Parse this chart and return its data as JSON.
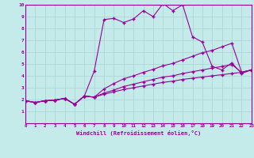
{
  "xlabel": "Windchill (Refroidissement éolien,°C)",
  "xlim": [
    0,
    23
  ],
  "ylim": [
    0,
    10
  ],
  "xticks": [
    0,
    1,
    2,
    3,
    4,
    5,
    6,
    7,
    8,
    9,
    10,
    11,
    12,
    13,
    14,
    15,
    16,
    17,
    18,
    19,
    20,
    21,
    22,
    23
  ],
  "yticks": [
    1,
    2,
    3,
    4,
    5,
    6,
    7,
    8,
    9,
    10
  ],
  "background_color": "#c5eaea",
  "line_color": "#990099",
  "grid_color": "#a8d4d4",
  "lines": [
    {
      "x": [
        0,
        1,
        2,
        3,
        4,
        5,
        6,
        7,
        8,
        9,
        10,
        11,
        12,
        13,
        14,
        15,
        16,
        17,
        18,
        19,
        20,
        21,
        22,
        23
      ],
      "y": [
        1.9,
        1.75,
        1.9,
        1.95,
        2.1,
        1.6,
        2.3,
        4.4,
        8.75,
        8.85,
        8.5,
        8.8,
        9.5,
        9.0,
        10.1,
        9.5,
        10.0,
        7.3,
        6.85,
        4.8,
        4.5,
        5.1,
        4.2,
        4.5
      ]
    },
    {
      "x": [
        0,
        1,
        2,
        3,
        4,
        5,
        6,
        7,
        8,
        9,
        10,
        11,
        12,
        13,
        14,
        15,
        16,
        17,
        18,
        19,
        20,
        21,
        22,
        23
      ],
      "y": [
        1.9,
        1.75,
        1.9,
        1.95,
        2.1,
        1.6,
        2.3,
        2.2,
        2.9,
        3.35,
        3.75,
        4.0,
        4.3,
        4.55,
        4.85,
        5.05,
        5.35,
        5.65,
        5.95,
        6.15,
        6.45,
        6.75,
        4.3,
        4.5
      ]
    },
    {
      "x": [
        0,
        1,
        2,
        3,
        4,
        5,
        6,
        7,
        8,
        9,
        10,
        11,
        12,
        13,
        14,
        15,
        16,
        17,
        18,
        19,
        20,
        21,
        22,
        23
      ],
      "y": [
        1.9,
        1.75,
        1.9,
        1.95,
        2.1,
        1.6,
        2.3,
        2.2,
        2.55,
        2.8,
        3.1,
        3.3,
        3.5,
        3.7,
        3.9,
        4.0,
        4.2,
        4.35,
        4.5,
        4.65,
        4.8,
        4.95,
        4.3,
        4.5
      ]
    },
    {
      "x": [
        0,
        1,
        2,
        3,
        4,
        5,
        6,
        7,
        8,
        9,
        10,
        11,
        12,
        13,
        14,
        15,
        16,
        17,
        18,
        19,
        20,
        21,
        22,
        23
      ],
      "y": [
        1.9,
        1.75,
        1.9,
        1.95,
        2.1,
        1.6,
        2.3,
        2.2,
        2.45,
        2.65,
        2.85,
        3.0,
        3.15,
        3.3,
        3.45,
        3.55,
        3.7,
        3.8,
        3.9,
        4.0,
        4.1,
        4.2,
        4.3,
        4.5
      ]
    }
  ]
}
